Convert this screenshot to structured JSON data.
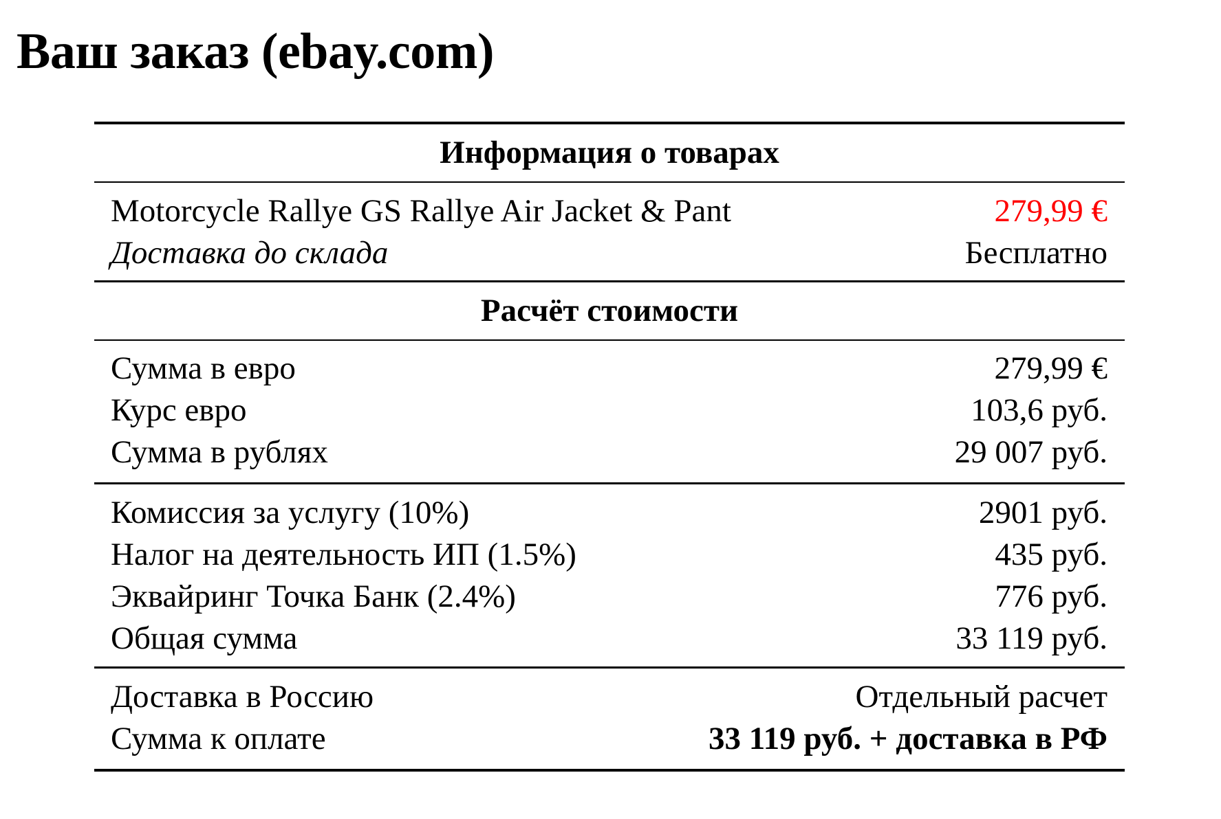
{
  "title": "Ваш заказ (ebay.com)",
  "colors": {
    "price_highlight": "#ff0000"
  },
  "items_section": {
    "header": "Информация о товарах",
    "product_name": "Motorcycle Rallye GS Rallye Air Jacket & Pant",
    "product_price": "279,99 €",
    "shipping_label": "Доставка до склада",
    "shipping_value": "Бесплатно"
  },
  "calc_section": {
    "header": "Расчёт стоимости",
    "group1": [
      {
        "label": "Сумма в евро",
        "value": "279,99 €"
      },
      {
        "label": "Курс евро",
        "value": "103,6 руб."
      },
      {
        "label": "Сумма в рублях",
        "value": "29 007 руб."
      }
    ],
    "group2": [
      {
        "label": "Комиссия за услугу (10%)",
        "value": "2901 руб."
      },
      {
        "label": "Налог на деятельность ИП (1.5%)",
        "value": "435 руб."
      },
      {
        "label": "Эквайринг Точка Банк (2.4%)",
        "value": "776 руб."
      },
      {
        "label": "Общая сумма",
        "value": "33 119 руб."
      }
    ],
    "group3": [
      {
        "label": "Доставка в Россию",
        "value": "Отдельный расчет"
      },
      {
        "label": "Сумма к оплате",
        "value": "33 119 руб. + доставка в РФ"
      }
    ]
  }
}
